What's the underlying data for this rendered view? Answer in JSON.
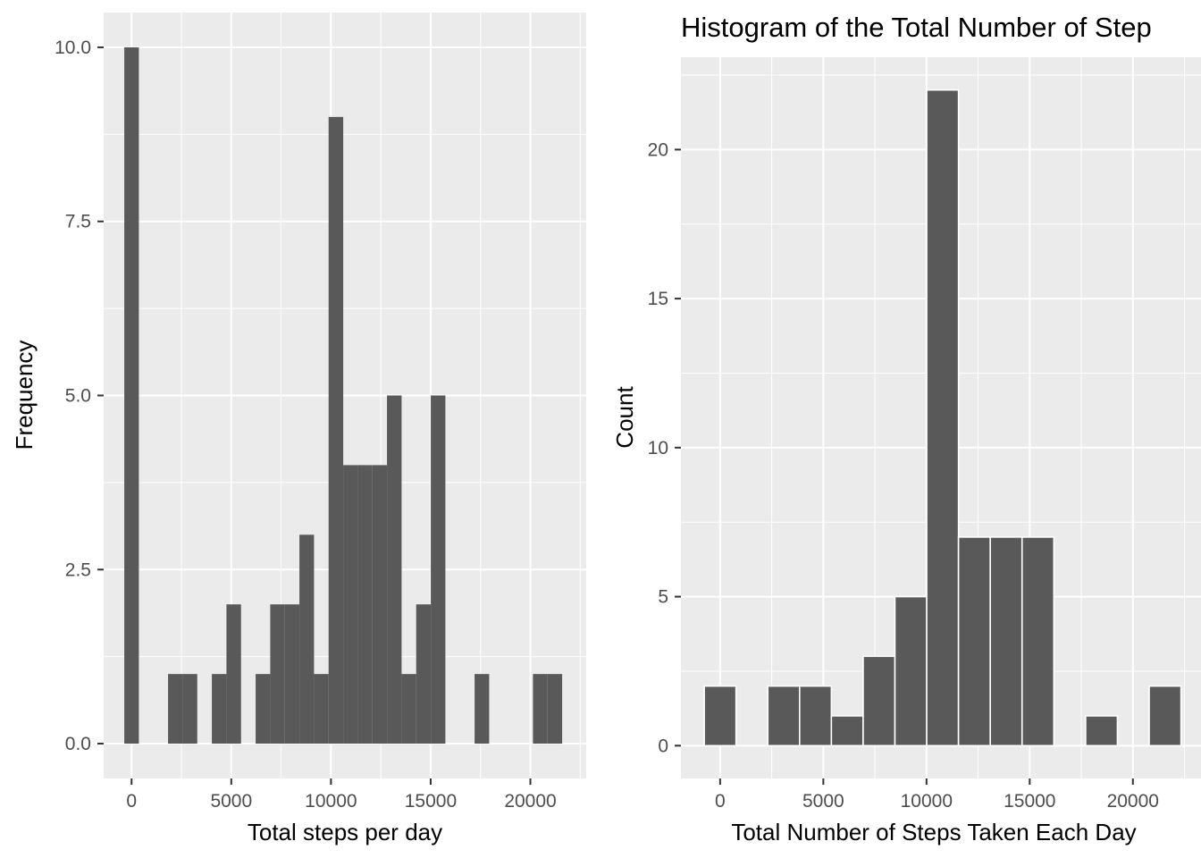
{
  "chart_data": [
    {
      "type": "bar",
      "title": "",
      "xlabel": "Total steps per day",
      "ylabel": "Frequency",
      "xlim": [
        -1400,
        22800
      ],
      "ylim": [
        -0.5,
        10.5
      ],
      "xticks": [
        0,
        5000,
        10000,
        15000,
        20000
      ],
      "xtick_labels": [
        "0",
        "5000",
        "10000",
        "15000",
        "20000"
      ],
      "yticks": [
        0,
        2.5,
        5,
        7.5,
        10
      ],
      "ytick_labels": [
        "0.0",
        "2.5",
        "5.0",
        "7.5",
        "10.0"
      ],
      "grid": true,
      "bar_fill": "#595959",
      "bar_outline": "none",
      "panel_background": "#ebebeb",
      "bins": [
        {
          "x0": -366,
          "x1": 366,
          "count": 10
        },
        {
          "x0": 366,
          "x1": 1098,
          "count": 0
        },
        {
          "x0": 1098,
          "x1": 1830,
          "count": 0
        },
        {
          "x0": 1830,
          "x1": 2562,
          "count": 1
        },
        {
          "x0": 2562,
          "x1": 3294,
          "count": 1
        },
        {
          "x0": 3294,
          "x1": 4026,
          "count": 0
        },
        {
          "x0": 4026,
          "x1": 4758,
          "count": 1
        },
        {
          "x0": 4758,
          "x1": 5490,
          "count": 2
        },
        {
          "x0": 5490,
          "x1": 6222,
          "count": 0
        },
        {
          "x0": 6222,
          "x1": 6954,
          "count": 1
        },
        {
          "x0": 6954,
          "x1": 7686,
          "count": 2
        },
        {
          "x0": 7686,
          "x1": 8418,
          "count": 2
        },
        {
          "x0": 8418,
          "x1": 9150,
          "count": 3
        },
        {
          "x0": 9150,
          "x1": 9882,
          "count": 1
        },
        {
          "x0": 9882,
          "x1": 10614,
          "count": 9
        },
        {
          "x0": 10614,
          "x1": 11346,
          "count": 4
        },
        {
          "x0": 11346,
          "x1": 12078,
          "count": 4
        },
        {
          "x0": 12078,
          "x1": 12810,
          "count": 4
        },
        {
          "x0": 12810,
          "x1": 13542,
          "count": 5
        },
        {
          "x0": 13542,
          "x1": 14274,
          "count": 1
        },
        {
          "x0": 14274,
          "x1": 15006,
          "count": 2
        },
        {
          "x0": 15006,
          "x1": 15738,
          "count": 5
        },
        {
          "x0": 15738,
          "x1": 16470,
          "count": 0
        },
        {
          "x0": 16470,
          "x1": 17202,
          "count": 0
        },
        {
          "x0": 17202,
          "x1": 17934,
          "count": 1
        },
        {
          "x0": 17934,
          "x1": 18666,
          "count": 0
        },
        {
          "x0": 18666,
          "x1": 19398,
          "count": 0
        },
        {
          "x0": 19398,
          "x1": 20130,
          "count": 0
        },
        {
          "x0": 20130,
          "x1": 20862,
          "count": 1
        },
        {
          "x0": 20862,
          "x1": 21594,
          "count": 1
        }
      ]
    },
    {
      "type": "bar",
      "title": "Histogram of the Total Number of Step",
      "xlabel": "Total Number of Steps Taken Each Day",
      "ylabel": "Count",
      "xlim": [
        -1900,
        23300
      ],
      "ylim": [
        -1.1,
        23.1
      ],
      "xticks": [
        0,
        5000,
        10000,
        15000,
        20000
      ],
      "xtick_labels": [
        "0",
        "5000",
        "10000",
        "15000",
        "20000"
      ],
      "yticks": [
        0,
        5,
        10,
        15,
        20
      ],
      "ytick_labels": [
        "0",
        "5",
        "10",
        "15",
        "20"
      ],
      "grid": true,
      "bar_fill": "#595959",
      "bar_outline": "#ffffff",
      "panel_background": "#ebebeb",
      "bins": [
        {
          "x0": -770,
          "x1": 770,
          "count": 2
        },
        {
          "x0": 770,
          "x1": 2310,
          "count": 0
        },
        {
          "x0": 2310,
          "x1": 3850,
          "count": 2
        },
        {
          "x0": 3850,
          "x1": 5390,
          "count": 2
        },
        {
          "x0": 5390,
          "x1": 6930,
          "count": 1
        },
        {
          "x0": 6930,
          "x1": 8470,
          "count": 3
        },
        {
          "x0": 8470,
          "x1": 10010,
          "count": 5
        },
        {
          "x0": 10010,
          "x1": 11550,
          "count": 22
        },
        {
          "x0": 11550,
          "x1": 13090,
          "count": 7
        },
        {
          "x0": 13090,
          "x1": 14630,
          "count": 7
        },
        {
          "x0": 14630,
          "x1": 16170,
          "count": 7
        },
        {
          "x0": 16170,
          "x1": 17710,
          "count": 0
        },
        {
          "x0": 17710,
          "x1": 19250,
          "count": 1
        },
        {
          "x0": 19250,
          "x1": 20790,
          "count": 0
        },
        {
          "x0": 20790,
          "x1": 22330,
          "count": 2
        }
      ]
    }
  ]
}
